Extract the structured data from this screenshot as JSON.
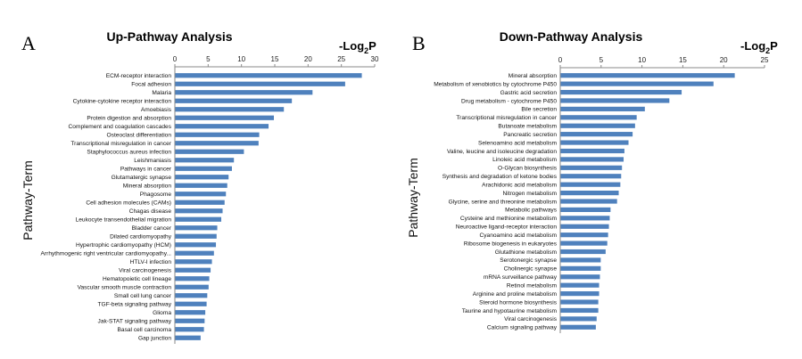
{
  "chart_data": [
    {
      "type": "bar",
      "orientation": "horizontal",
      "panel": "A",
      "title": "Up-Pathway Analysis",
      "unit_main": "-Log",
      "unit_sub": "2",
      "unit_tail": "P",
      "ylabel": "Pathway-Term",
      "xlim": [
        0,
        30
      ],
      "xticks": [
        0,
        5,
        10,
        15,
        20,
        25,
        30
      ],
      "grid": false,
      "bar_color": "#4f81bd",
      "categories": [
        "ECM-receptor interaction",
        "Focal adhesion",
        "Malaria",
        "Cytokine-cytokine receptor interaction",
        "Amoebiasis",
        "Protein digestion and absorption",
        "Complement and coagulation cascades",
        "Osteoclast differentiation",
        "Transcriptional misregulation in cancer",
        "Staphylococcus aureus infection",
        "Leishmaniasis",
        "Pathways in cancer",
        "Glutamatergic synapse",
        "Mineral absorption",
        "Phagosome",
        "Cell adhesion molecules (CAMs)",
        "Chagas disease",
        "Leukocyte transendothelial migration",
        "Bladder cancer",
        "Dilated cardiomyopathy",
        "Hypertrophic cardiomyopathy (HCM)",
        "Arrhythmogenic right ventricular cardiomyopathy...",
        "HTLV-I infection",
        "Viral carcinogenesis",
        "Hematopoietic cell lineage",
        "Vascular smooth muscle contraction",
        "Small cell lung cancer",
        "TGF-beta signaling pathway",
        "Glioma",
        "Jak-STAT signaling pathway",
        "Basal cell carcinoma",
        "Gap junction"
      ],
      "values": [
        28.0,
        25.5,
        20.6,
        17.5,
        16.3,
        14.8,
        14.0,
        12.6,
        12.5,
        10.3,
        8.8,
        8.5,
        8.0,
        7.8,
        7.6,
        7.4,
        7.1,
        6.9,
        6.3,
        6.2,
        6.1,
        5.8,
        5.5,
        5.3,
        5.1,
        5.0,
        4.8,
        4.7,
        4.5,
        4.4,
        4.3,
        3.8
      ]
    },
    {
      "type": "bar",
      "orientation": "horizontal",
      "panel": "B",
      "title": "Down-Pathway Analysis",
      "unit_main": "-Log",
      "unit_sub": "2",
      "unit_tail": "P",
      "ylabel": "Pathway-Term",
      "xlim": [
        0,
        25
      ],
      "xticks": [
        0,
        5,
        10,
        15,
        20,
        25
      ],
      "grid": false,
      "bar_color": "#4f81bd",
      "categories": [
        "Mineral absorption",
        "Metabolism of xenobiotics by cytochrome P450",
        "Gastric acid secretion",
        "Drug metabolism - cytochrome P450",
        "Bile secretion",
        "Transcriptional misregulation in cancer",
        "Butanoate metabolism",
        "Pancreatic secretion",
        "Selenoamino acid metabolism",
        "Valine, leucine and isoleucine degradation",
        "Linoleic acid metabolism",
        "O-Glycan biosynthesis",
        "Synthesis and degradation of ketone bodies",
        "Arachidonic acid metabolism",
        "Nitrogen metabolism",
        "Glycine, serine and threonine metabolism",
        "Metabolic pathways",
        "Cysteine and methionine metabolism",
        "Neuroactive ligand-receptor interaction",
        "Cyanoamino acid metabolism",
        "Ribosome biogenesis in eukaryotes",
        "Glutathione metabolism",
        "Serotonergic synapse",
        "Cholinergic synapse",
        "mRNA surveillance pathway",
        "Retinol metabolism",
        "Arginine and proline metabolism",
        "Steroid hormone biosynthesis",
        "Taurine and hypotaurine metabolism",
        "Viral carcinogenesis",
        "Calcium signaling pathway"
      ],
      "values": [
        21.3,
        18.7,
        14.8,
        13.3,
        10.3,
        9.3,
        9.1,
        8.8,
        8.3,
        7.8,
        7.7,
        7.5,
        7.4,
        7.3,
        7.1,
        6.9,
        6.1,
        6.0,
        5.9,
        5.8,
        5.7,
        5.5,
        4.9,
        4.9,
        4.8,
        4.7,
        4.7,
        4.6,
        4.6,
        4.4,
        4.3
      ]
    }
  ]
}
